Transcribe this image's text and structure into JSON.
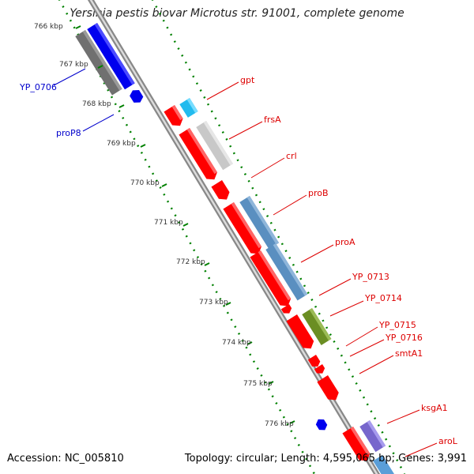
{
  "title": "Yersinia pestis biovar Microtus str. 91001, complete genome",
  "footer": {
    "accession": "Accession: NC_005810",
    "summary": "Topology: circular; Length: 4,595,065 bp; Genes: 3,991"
  },
  "scale_labels": [
    "766 kbp",
    "767 kbp",
    "768 kbp",
    "769 kbp",
    "770 kbp",
    "771 kbp",
    "772 kbp",
    "773 kbp",
    "774 kbp",
    "775 kbp",
    "776 kbp"
  ],
  "gene_labels_left": [
    "YP_0706",
    "proP8"
  ],
  "gene_labels_right": [
    "gpt",
    "frsA",
    "crl",
    "proB",
    "proA",
    "YP_0713",
    "YP_0714",
    "YP_0715",
    "YP_0716",
    "smtA1",
    "ksgA1",
    "aroL"
  ],
  "colors": {
    "red_gene": "#ff0000",
    "blue_gene": "#0000ee",
    "dark_gray_feature": "#707070",
    "light_gray_feature": "#c8c8c8",
    "cyan_feature": "#22bbee",
    "steel_blue_feature": "#5a8fc0",
    "olive_feature": "#6b8e23",
    "purple_feature": "#7766cc",
    "tick_green": "#008000",
    "backbone": "#999999",
    "label_red": "#dd0000",
    "label_blue": "#0000cc"
  }
}
